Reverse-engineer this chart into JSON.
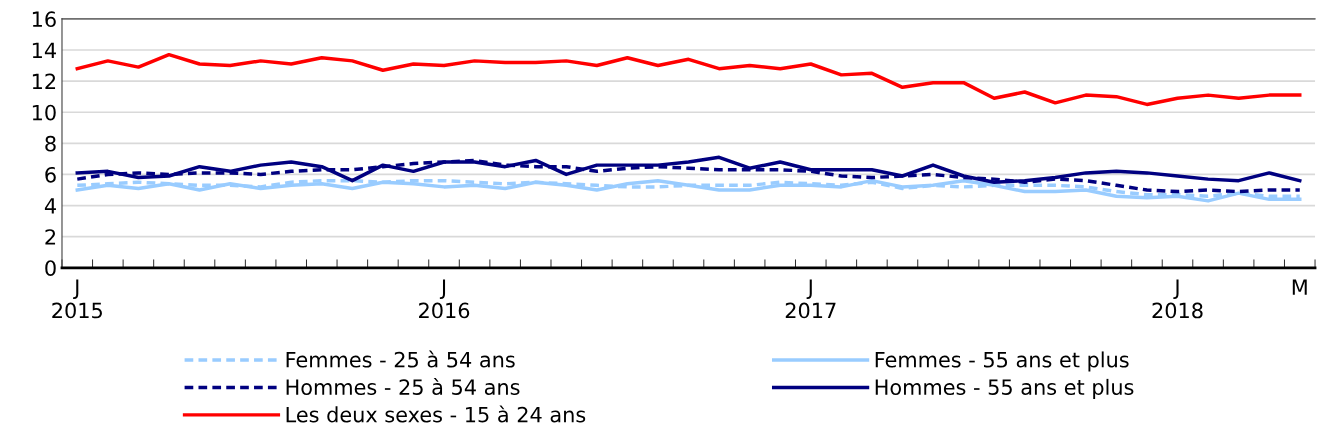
{
  "chart_data": {
    "type": "line",
    "categories": [
      "J\n2015",
      null,
      null,
      null,
      null,
      null,
      null,
      null,
      null,
      null,
      null,
      null,
      "J\n2016",
      null,
      null,
      null,
      null,
      null,
      null,
      null,
      null,
      null,
      null,
      null,
      "J\n2017",
      null,
      null,
      null,
      null,
      null,
      null,
      null,
      null,
      null,
      null,
      null,
      "J\n2018",
      null,
      null,
      null,
      "M"
    ],
    "series": [
      {
        "name": "Femmes - 25 à 54 ans",
        "color": "#99ccff",
        "line_style": "dashed",
        "values": [
          5.3,
          5.4,
          5.5,
          5.4,
          5.3,
          5.3,
          5.2,
          5.5,
          5.6,
          5.6,
          5.5,
          5.6,
          5.6,
          5.5,
          5.4,
          5.5,
          5.4,
          5.3,
          5.2,
          5.2,
          5.3,
          5.3,
          5.3,
          5.5,
          5.4,
          5.3,
          5.5,
          5.1,
          5.3,
          5.2,
          5.3,
          5.3,
          5.3,
          5.2,
          4.9,
          4.7,
          4.7,
          4.6,
          4.8,
          4.6,
          4.6
        ]
      },
      {
        "name": "Femmes - 55 ans et plus",
        "color": "#99ccff",
        "line_style": "solid",
        "values": [
          5.0,
          5.3,
          5.1,
          5.4,
          5.0,
          5.4,
          5.1,
          5.3,
          5.4,
          5.1,
          5.5,
          5.4,
          5.2,
          5.3,
          5.1,
          5.5,
          5.3,
          5.0,
          5.4,
          5.6,
          5.3,
          5.0,
          5.0,
          5.3,
          5.3,
          5.2,
          5.6,
          5.2,
          5.3,
          5.6,
          5.3,
          4.9,
          4.9,
          5.0,
          4.6,
          4.5,
          4.6,
          4.3,
          4.8,
          4.4,
          4.4
        ]
      },
      {
        "name": "Hommes - 25 à 54 ans",
        "color": "#000080",
        "line_style": "dashed",
        "values": [
          5.7,
          6.0,
          6.1,
          6.0,
          6.1,
          6.1,
          6.0,
          6.2,
          6.3,
          6.3,
          6.5,
          6.7,
          6.8,
          6.9,
          6.6,
          6.5,
          6.5,
          6.2,
          6.4,
          6.5,
          6.4,
          6.3,
          6.3,
          6.3,
          6.2,
          5.9,
          5.8,
          5.9,
          6.0,
          5.8,
          5.7,
          5.5,
          5.7,
          5.6,
          5.3,
          5.0,
          4.9,
          5.0,
          4.9,
          5.0,
          5.0
        ]
      },
      {
        "name": "Hommes - 55 ans et plus",
        "color": "#000080",
        "line_style": "solid",
        "values": [
          6.1,
          6.2,
          5.8,
          5.9,
          6.5,
          6.2,
          6.6,
          6.8,
          6.5,
          5.6,
          6.6,
          6.2,
          6.8,
          6.8,
          6.5,
          6.9,
          6.0,
          6.6,
          6.6,
          6.6,
          6.8,
          7.1,
          6.4,
          6.8,
          6.3,
          6.3,
          6.3,
          5.9,
          6.6,
          5.9,
          5.5,
          5.6,
          5.8,
          6.1,
          6.2,
          6.1,
          5.9,
          5.7,
          5.6,
          6.1,
          5.6
        ]
      },
      {
        "name": "Les deux sexes - 15 à 24 ans",
        "color": "#ff0000",
        "line_style": "solid",
        "values": [
          12.8,
          13.3,
          12.9,
          13.7,
          13.1,
          13.0,
          13.3,
          13.1,
          13.5,
          13.3,
          12.7,
          13.1,
          13.0,
          13.3,
          13.2,
          13.2,
          13.3,
          13.0,
          13.5,
          13.0,
          13.4,
          12.8,
          13.0,
          12.8,
          13.1,
          12.4,
          12.5,
          11.6,
          11.9,
          11.9,
          10.9,
          11.3,
          10.6,
          11.1,
          11.0,
          10.5,
          10.9,
          11.1,
          10.9,
          11.1,
          11.1
        ]
      }
    ],
    "ylim": [
      0,
      16
    ],
    "yticks": [
      0,
      2,
      4,
      6,
      8,
      10,
      12,
      14,
      16
    ],
    "grid": "y",
    "legend": "bottom",
    "marker": "none"
  }
}
